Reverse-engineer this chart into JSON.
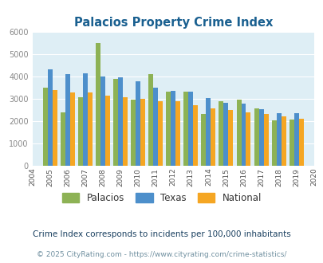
{
  "title": "Palacios Property Crime Index",
  "years": [
    2004,
    2005,
    2006,
    2007,
    2008,
    2009,
    2010,
    2011,
    2012,
    2013,
    2014,
    2015,
    2016,
    2017,
    2018,
    2019,
    2020
  ],
  "palacios": [
    null,
    3500,
    2400,
    3050,
    5480,
    3880,
    2950,
    4080,
    3300,
    3320,
    2320,
    2900,
    2950,
    2560,
    2020,
    2080,
    null
  ],
  "texas": [
    null,
    4300,
    4080,
    4120,
    4000,
    3940,
    3760,
    3480,
    3330,
    3320,
    3010,
    2820,
    2760,
    2510,
    2340,
    2360,
    null
  ],
  "national": [
    null,
    3380,
    3280,
    3280,
    3150,
    3080,
    2980,
    2900,
    2870,
    2720,
    2570,
    2490,
    2370,
    2330,
    2200,
    2110,
    null
  ],
  "palacios_color": "#8db255",
  "texas_color": "#4d8fcb",
  "national_color": "#f5a623",
  "bg_color": "#deeef5",
  "ylim": [
    0,
    6000
  ],
  "yticks": [
    0,
    1000,
    2000,
    3000,
    4000,
    5000,
    6000
  ],
  "footnote1": "Crime Index corresponds to incidents per 100,000 inhabitants",
  "footnote2": "© 2025 CityRating.com - https://www.cityrating.com/crime-statistics/",
  "title_color": "#1a6090",
  "footnote1_color": "#1a4060",
  "footnote2_color": "#7090a0",
  "legend_labels": [
    "Palacios",
    "Texas",
    "National"
  ]
}
